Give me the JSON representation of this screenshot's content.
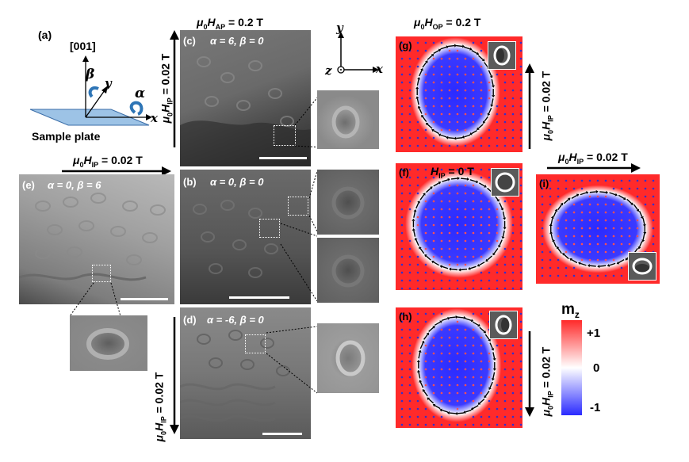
{
  "panel_a": {
    "label": "(a)",
    "axis_001": "[001]",
    "beta": "β",
    "alpha": "α",
    "y": "y",
    "x": "x",
    "caption": "Sample plate"
  },
  "header_ap": {
    "sym": "μ",
    "sub0": "0",
    "H": "H",
    "sub": "AP",
    "val": " = 0.2 T"
  },
  "header_op": {
    "sym": "μ",
    "sub0": "0",
    "H": "H",
    "sub": "OP",
    "val": " = 0.2 T"
  },
  "hip_field": {
    "sym": "μ",
    "sub0": "0",
    "H": "H",
    "sub": "IP",
    "val": " = 0.02 T"
  },
  "coord": {
    "y": "y",
    "z": "z",
    "x": "x"
  },
  "tem_panels": [
    {
      "label": "(c)",
      "angles": "α = 6, β = 0"
    },
    {
      "label": "(e)",
      "angles": "α = 0, β = 6"
    },
    {
      "label": "(b)",
      "angles": "α = 0, β = 0"
    },
    {
      "label": "(d)",
      "angles": "α = -6, β = 0"
    }
  ],
  "sim_panels": [
    {
      "label": "(g)"
    },
    {
      "label": "(f)",
      "field": "H",
      "field_sub": "IP",
      "field_val": " = 0 T"
    },
    {
      "label": "(i)"
    },
    {
      "label": "(h)"
    }
  ],
  "colorbar": {
    "title": "m",
    "title_sub": "z",
    "ticks": [
      "+1",
      "0",
      "-1"
    ],
    "colors": [
      "#ff2a2a",
      "#ffffff",
      "#2a2aff"
    ]
  }
}
